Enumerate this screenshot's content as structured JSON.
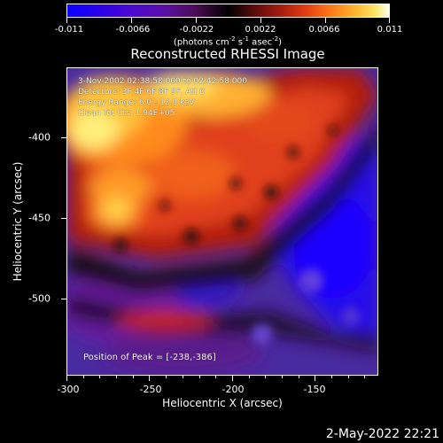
{
  "colorbar": {
    "tick_labels": [
      "-0.011",
      "-0.0066",
      "-0.0022",
      "0.0022",
      "0.0066",
      "0.011"
    ],
    "unit_main": "(photons cm",
    "unit_exp1": "-2",
    "unit_mid1": " s",
    "unit_exp2": "-1",
    "unit_mid2": " asec",
    "unit_exp3": "-2",
    "unit_end": ")"
  },
  "title": "Reconstructed RHESSI Image",
  "info": {
    "time_range": "3-Nov-2002 02:38:58.000 to 02:42:58.000",
    "detectors": "Detectors: 3F 4F 6F 8F 9F, Att 0",
    "energy": "Energy Range: 6.0 - 12.0 keV",
    "clean": "Clean    Tot Cts: 1.94E+05",
    "peak": "Position of Peak = [-238,-386]"
  },
  "x_axis": {
    "title": "Heliocentric X (arcsec)",
    "tick_labels": [
      "-300",
      "-250",
      "-200",
      "-150"
    ]
  },
  "y_axis": {
    "title": "Heliocentric Y (arcsec)",
    "tick_labels": [
      "-400",
      "-450",
      "-500"
    ]
  },
  "timestamp": "2-May-2022 22:21",
  "colors": {
    "background": "#000000",
    "colormap_low": "#0a00ff",
    "colormap_high": "#fffef0"
  }
}
